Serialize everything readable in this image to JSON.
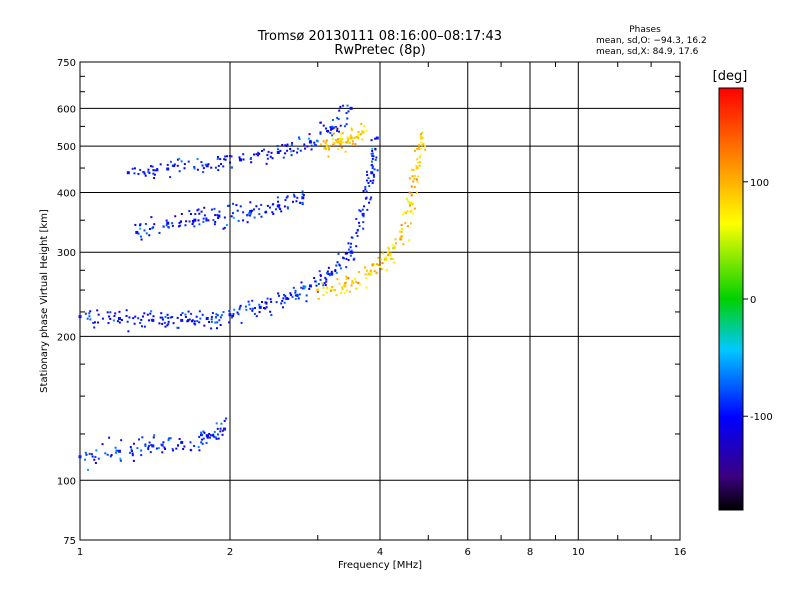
{
  "chart_data": {
    "type": "scatter",
    "title": "Tromsø 20130111 08:16:00–08:17:43",
    "subtitle": "RwPretec (8p)",
    "xlabel": "Frequency [MHz]",
    "ylabel": "Stationary phase Virtual Height [km]",
    "xscale": "log",
    "yscale": "log",
    "xlim": [
      1,
      16
    ],
    "ylim": [
      75,
      750
    ],
    "xticks": [
      1,
      2,
      4,
      6,
      8,
      10,
      16
    ],
    "yticks": [
      75,
      100,
      200,
      300,
      400,
      500,
      600,
      750
    ],
    "grid": true,
    "legend": {
      "title": "Phases",
      "line1": "mean, sd,O:  −94.3,  16.2",
      "line2": "mean, sd,X:   84.9,  17.6",
      "placement": "top-right"
    },
    "colorbar": {
      "label": "[deg]",
      "min": -180,
      "max": 180,
      "ticks": [
        100,
        0,
        -100
      ],
      "placement": "right"
    },
    "traces": [
      {
        "component": "O",
        "mean_phase": -94.3,
        "sd": 16.2,
        "x": [
          1.0,
          1.2,
          1.4,
          1.6,
          1.8,
          2.0,
          2.3,
          2.6,
          2.9,
          3.2,
          3.5,
          3.7,
          3.85,
          3.95
        ],
        "y": [
          220,
          218,
          216,
          216,
          218,
          222,
          230,
          240,
          255,
          270,
          300,
          360,
          440,
          520
        ]
      },
      {
        "component": "X",
        "mean_phase": 84.9,
        "sd": 17.6,
        "x": [
          3.0,
          3.4,
          3.8,
          4.1,
          4.4,
          4.6,
          4.75,
          4.85
        ],
        "y": [
          250,
          255,
          270,
          290,
          320,
          380,
          450,
          520
        ]
      },
      {
        "component": "O",
        "mean_phase": -95.0,
        "sd": 16.0,
        "x": [
          1.25,
          1.5,
          1.8,
          2.1,
          2.5,
          2.9,
          3.2,
          3.5
        ],
        "y": [
          440,
          448,
          455,
          468,
          485,
          510,
          545,
          600
        ]
      },
      {
        "component": "O",
        "mean_phase": -96.0,
        "sd": 16.0,
        "x": [
          1.3,
          1.5,
          1.7,
          1.9,
          2.2,
          2.5,
          2.8
        ],
        "y": [
          330,
          345,
          350,
          357,
          365,
          375,
          390
        ]
      },
      {
        "component": "O",
        "mean_phase": -92.0,
        "sd": 16.0,
        "x": [
          1.0,
          1.2,
          1.4,
          1.6,
          1.8,
          1.95
        ],
        "y": [
          112,
          115,
          118,
          120,
          124,
          128
        ]
      },
      {
        "component": "X",
        "mean_phase": 85.0,
        "sd": 17.0,
        "x": [
          3.1,
          3.3,
          3.5,
          3.7
        ],
        "y": [
          495,
          510,
          520,
          535
        ]
      }
    ]
  }
}
